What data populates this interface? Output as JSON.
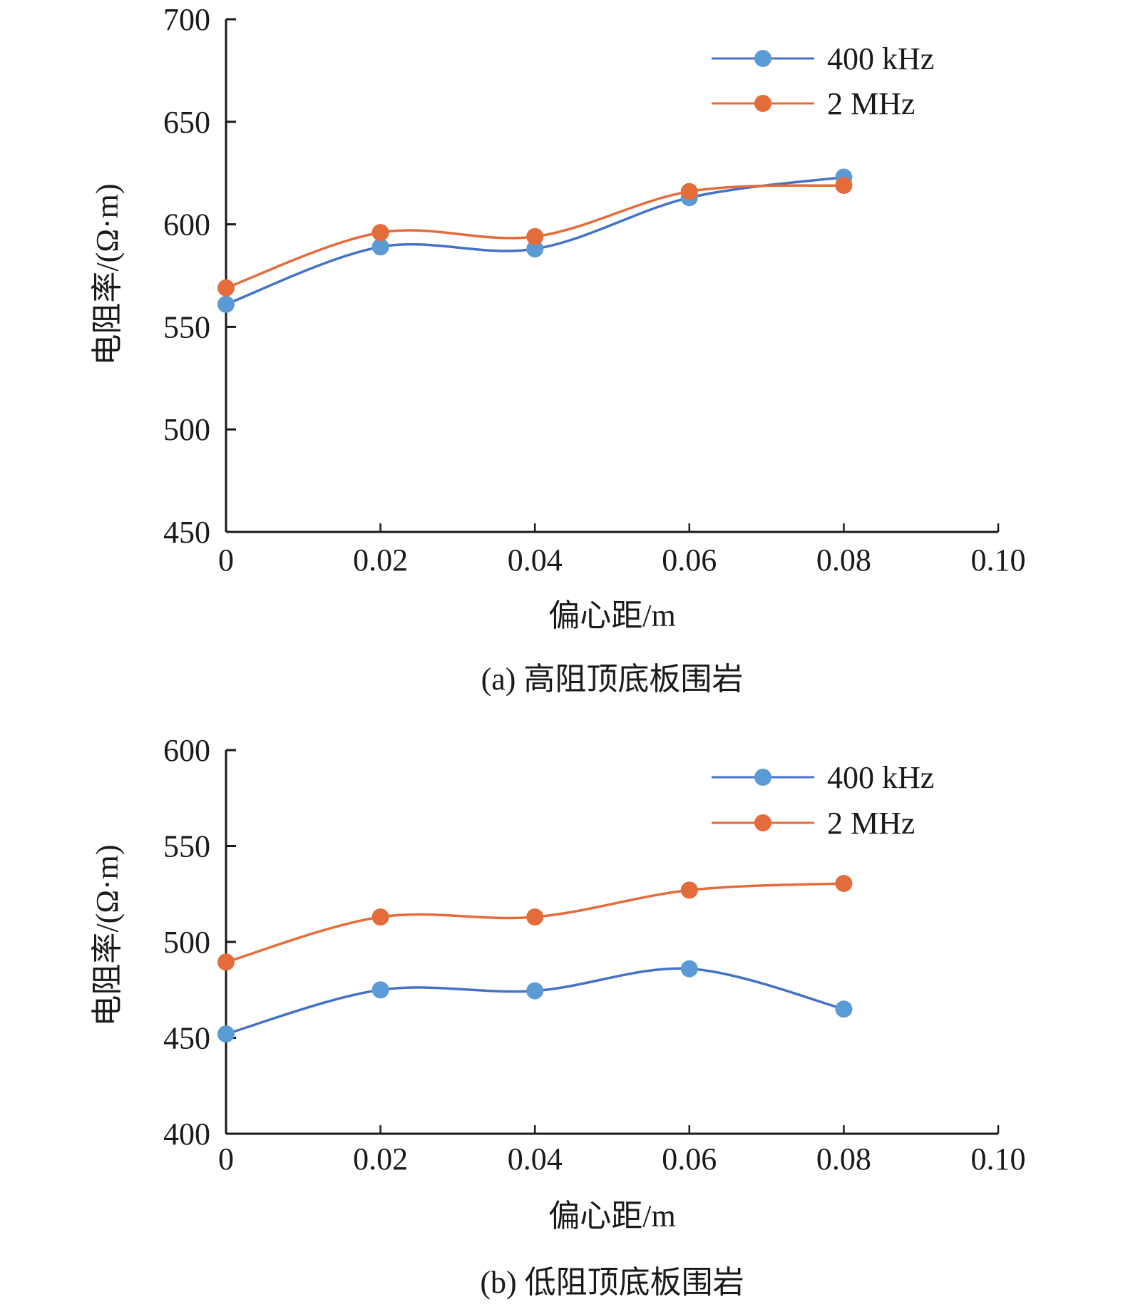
{
  "chart_data": [
    {
      "type": "line",
      "smooth": true,
      "caption": "(a) 高阻顶底板围岩",
      "xlabel": "偏心距/m",
      "ylabel": "电阻率/(Ω·m)",
      "xlim": [
        0,
        0.1
      ],
      "ylim": [
        450,
        700
      ],
      "x_ticks": [
        "0",
        "0.02",
        "0.04",
        "0.06",
        "0.08",
        "0.10"
      ],
      "y_ticks": [
        "450",
        "500",
        "550",
        "600",
        "650",
        "700"
      ],
      "legend_position": "top-right",
      "grid": false,
      "x": [
        0,
        0.02,
        0.04,
        0.06,
        0.08
      ],
      "series": [
        {
          "name": "400 kHz",
          "color": "#4472C4",
          "marker_color": "#5B9BD5",
          "values": [
            561,
            589,
            588,
            613,
            623
          ]
        },
        {
          "name": "2 MHz",
          "color": "#E46C3A",
          "marker_color": "#E46C3A",
          "values": [
            569,
            596,
            594,
            616,
            619
          ]
        }
      ]
    },
    {
      "type": "line",
      "smooth": true,
      "caption": "(b) 低阻顶底板围岩",
      "xlabel": "偏心距/m",
      "ylabel": "电阻率/(Ω·m)",
      "xlim": [
        0,
        0.1
      ],
      "ylim": [
        400,
        600
      ],
      "x_ticks": [
        "0",
        "0.02",
        "0.04",
        "0.06",
        "0.08",
        "0.10"
      ],
      "y_ticks": [
        "400",
        "450",
        "500",
        "550",
        "600"
      ],
      "legend_position": "top-right",
      "grid": false,
      "x": [
        0,
        0.02,
        0.04,
        0.06,
        0.08
      ],
      "series": [
        {
          "name": "400 kHz",
          "color": "#4472C4",
          "marker_color": "#5B9BD5",
          "values": [
            452,
            475,
            474.5,
            486,
            465
          ]
        },
        {
          "name": "2 MHz",
          "color": "#E46C3A",
          "marker_color": "#E46C3A",
          "values": [
            489.5,
            513,
            513,
            527,
            530.5
          ]
        }
      ]
    }
  ]
}
